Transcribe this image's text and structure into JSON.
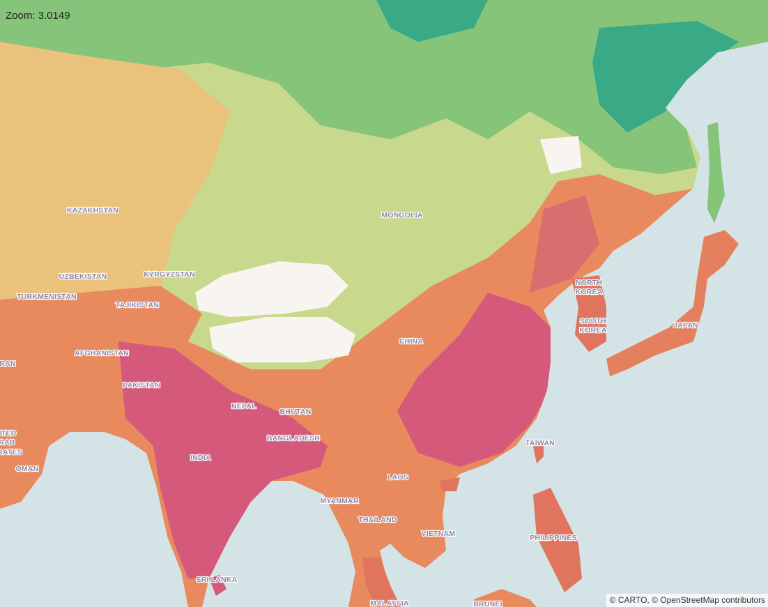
{
  "zoom_label": "Zoom: 3.0149",
  "place_labels": [
    "KAZAKHSTAN",
    "MONGOLIA",
    "UZBEKISTAN",
    "KYRGYZSTAN",
    "TURKMENISTAN",
    "TAJIKISTAN",
    "NORTH",
    "KOREA",
    "SOUTH",
    "KOREA",
    "JAPAN",
    "CHINA",
    "AFGHANISTAN",
    "RAN",
    "PAKISTAN",
    "NEPAL",
    "BHUTAN",
    "ITED",
    "RAB",
    "RATES",
    "BANGLADESH",
    "TAIWAN",
    "INDIA",
    "OMAN",
    "LAOS",
    "MYANMAR",
    "THAILAND",
    "VIETNAM",
    "PHILIPPINES",
    "SRI LANKA",
    "MALAYSIA",
    "BRUNEI"
  ],
  "attribution": "© CARTO, © OpenStreetMap contributors"
}
